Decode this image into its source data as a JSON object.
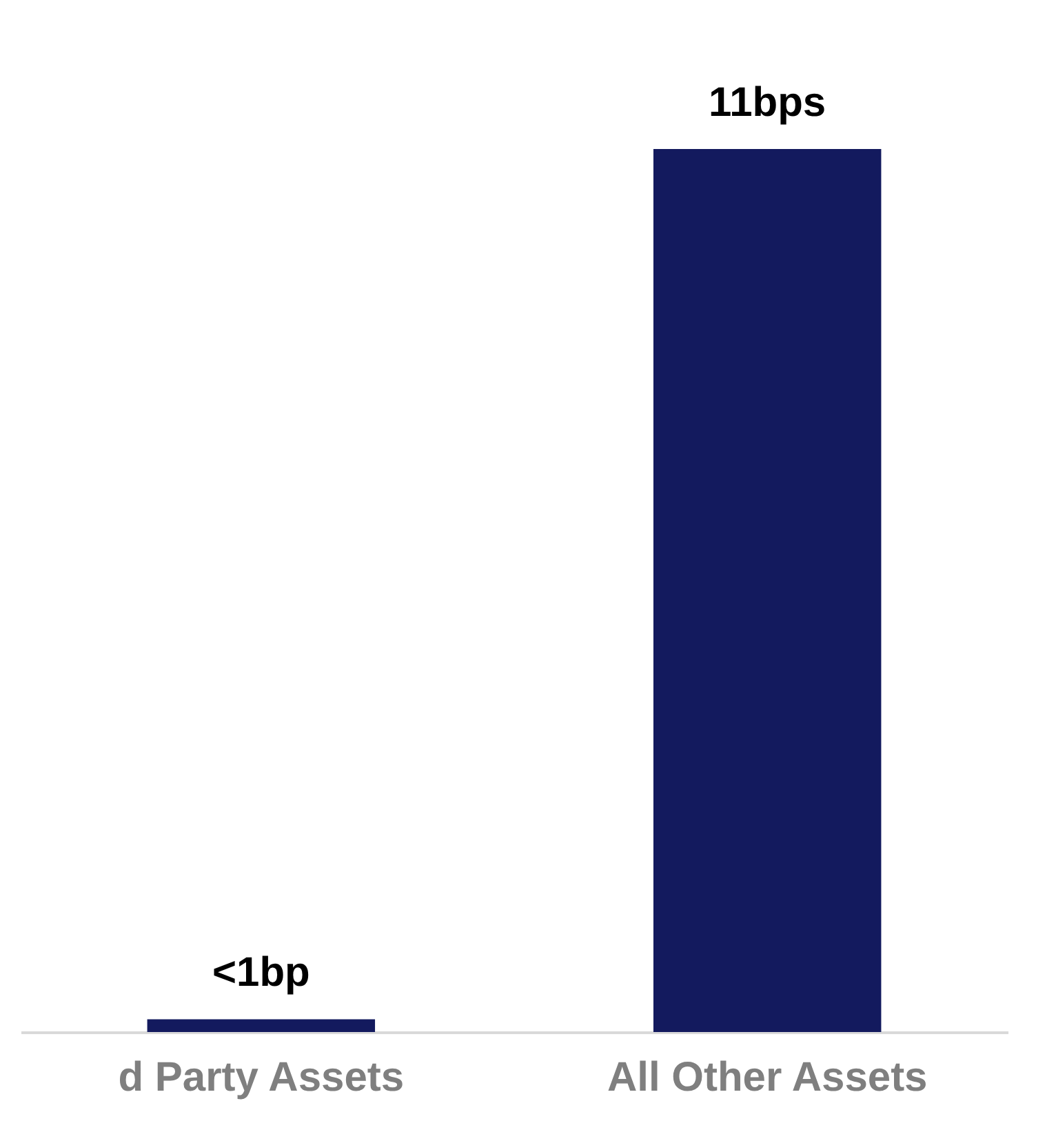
{
  "chart_data": {
    "type": "bar",
    "categories": [
      "d Party Assets",
      "All Other Assets"
    ],
    "values": [
      0.16,
      11
    ],
    "color": "#131a5e",
    "value_labels": [
      "<1bp",
      "11bps"
    ]
  }
}
